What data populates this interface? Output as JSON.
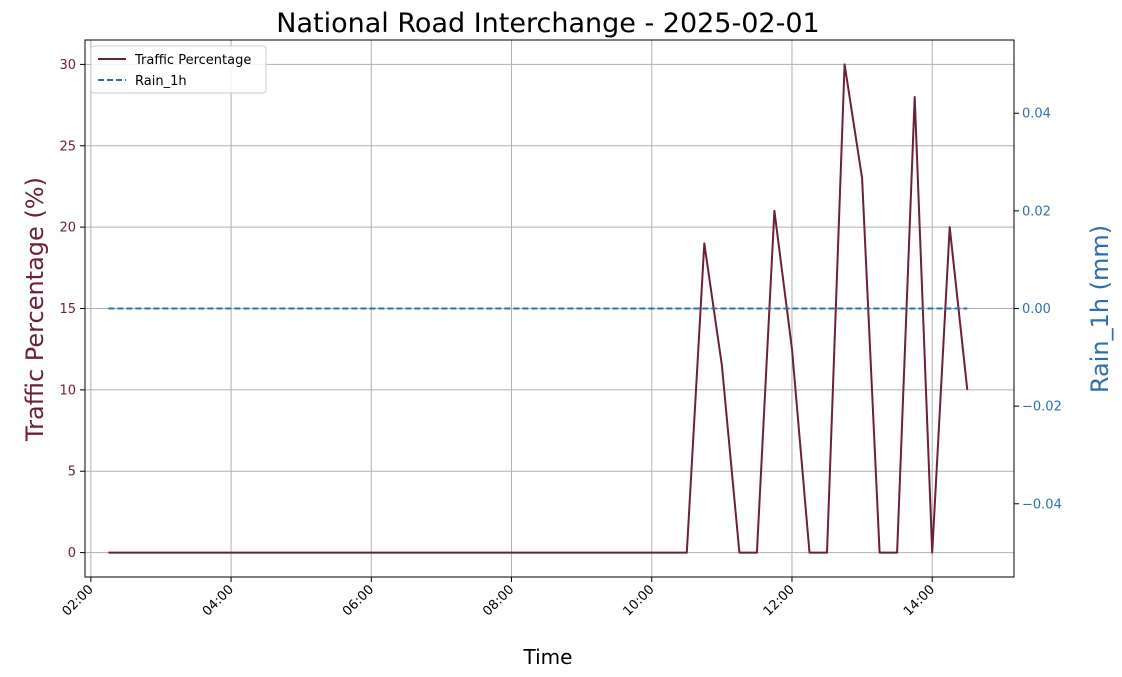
{
  "chart_data": {
    "type": "line",
    "title": "National Road Interchange - 2025-02-01",
    "xlabel": "Time",
    "ylabel_left": "Traffic Percentage (%)",
    "ylabel_right": "Rain_1h (mm)",
    "xlim": [
      "01:55",
      "15:10"
    ],
    "ylim_left": [
      -1.5,
      31.5
    ],
    "ylim_right": [
      -0.055,
      0.055
    ],
    "x_ticks": [
      "02:00",
      "04:00",
      "06:00",
      "08:00",
      "10:00",
      "12:00",
      "14:00"
    ],
    "y_ticks_left": [
      "0",
      "5",
      "10",
      "15",
      "20",
      "25",
      "30"
    ],
    "y_ticks_right": [
      "−0.04",
      "−0.02",
      "0.00",
      "0.02",
      "0.04"
    ],
    "y_ticks_right_values": [
      -0.04,
      -0.02,
      0.0,
      0.02,
      0.04
    ],
    "grid": true,
    "legend_position": "top-left",
    "series": [
      {
        "name": "Traffic Percentage",
        "axis": "left",
        "color": "#6b1f3c",
        "style": "solid",
        "x": [
          "02:15",
          "10:30",
          "10:45",
          "11:00",
          "11:15",
          "11:30",
          "11:45",
          "12:00",
          "12:15",
          "12:30",
          "12:45",
          "13:00",
          "13:15",
          "13:30",
          "13:45",
          "14:00",
          "14:15",
          "14:30"
        ],
        "values": [
          0,
          0,
          19,
          11.5,
          0,
          0,
          21,
          12.5,
          0,
          0,
          30,
          23,
          0,
          0,
          28,
          0,
          20,
          10
        ]
      },
      {
        "name": "Rain_1h",
        "axis": "right",
        "color": "#2f6fb0",
        "style": "dashed",
        "x": [
          "02:15",
          "14:30"
        ],
        "values": [
          0.0,
          0.0
        ]
      }
    ],
    "colors": {
      "left_axis": "#6b1f3c",
      "right_axis": "#2f6fb0"
    }
  }
}
